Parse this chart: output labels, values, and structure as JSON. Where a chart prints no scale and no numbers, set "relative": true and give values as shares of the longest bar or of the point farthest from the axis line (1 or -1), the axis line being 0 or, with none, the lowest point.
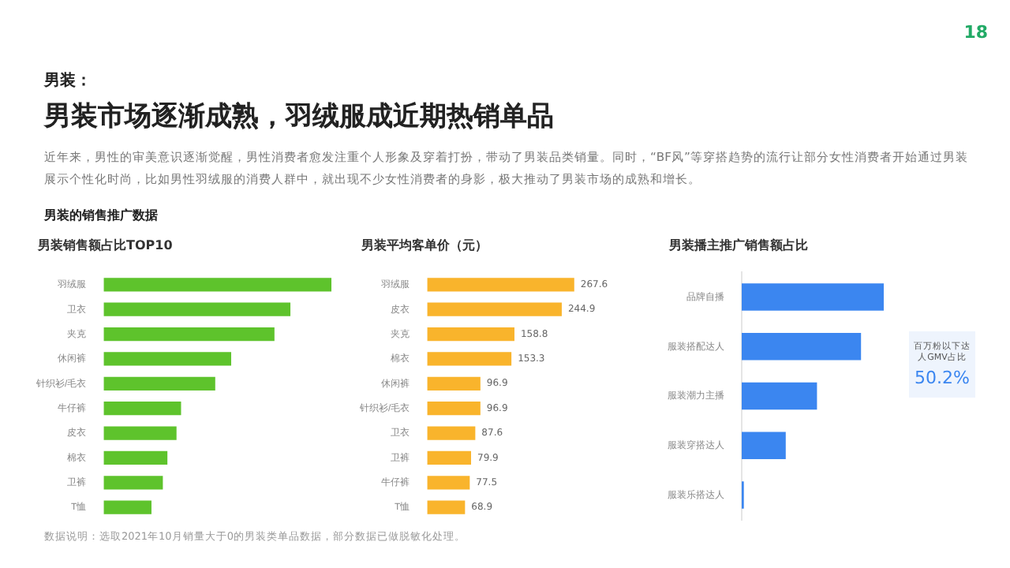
{
  "chart_data": [
    {
      "type": "bar",
      "orientation": "horizontal",
      "relative": true,
      "title": "男装销售额占比TOP10",
      "categories": [
        "羽绒服",
        "卫衣",
        "夹克",
        "休闲裤",
        "针织衫/毛衣",
        "牛仔裤",
        "皮衣",
        "棉衣",
        "卫裤",
        "T恤"
      ],
      "values": [
        1,
        0.82,
        0.75,
        0.56,
        0.49,
        0.34,
        0.32,
        0.28,
        0.26,
        0.21
      ],
      "color": "#5ec32c",
      "legend": false,
      "annotations": [
        "18",
        "男装：",
        "男装市场逐渐成熟，羽绒服成近期热销单品",
        "近年来，男性的审美意识逐渐觉醒，男性消费者愈发注重个人形象及穿着打扮，带动了男装品类销量。同时，“BF风”等穿搭趋势的流行让部分女性消费者开始通过男装展示个性化时尚，比如男性羽绒服的消费人群中，就出现不少女性消费者的身影，极大推动了男装市场的成熟和增长。",
        "男装的销售推广数据",
        "数据说明：选取2021年10月销量大于0的男装类单品数据，部分数据已做脱敏化处理。"
      ]
    },
    {
      "type": "bar",
      "orientation": "horizontal",
      "title": "男装平均客单价（元）",
      "categories": [
        "羽绒服",
        "皮衣",
        "夹克",
        "棉衣",
        "休闲裤",
        "针织衫/毛衣",
        "卫衣",
        "卫裤",
        "牛仔裤",
        "T恤"
      ],
      "values": [
        267.6,
        244.9,
        158.8,
        153.3,
        96.9,
        96.9,
        87.6,
        79.9,
        77.5,
        68.9
      ],
      "color": "#f9b42c",
      "data_labels": true,
      "legend": false,
      "tick_labels": "y"
    },
    {
      "type": "bar",
      "orientation": "horizontal",
      "relative": true,
      "title": "男装播主推广销售额占比",
      "categories": [
        "品牌自播",
        "服装搭配达人",
        "服装潮力主播",
        "服装穿搭达人",
        "服装乐搭达人"
      ],
      "values": [
        1,
        0.84,
        0.53,
        0.31,
        0.015
      ],
      "color": "#3b86f0",
      "legend": false,
      "annotations": [
        "百万粉以下达人GMV占比",
        "50.2%"
      ]
    }
  ]
}
